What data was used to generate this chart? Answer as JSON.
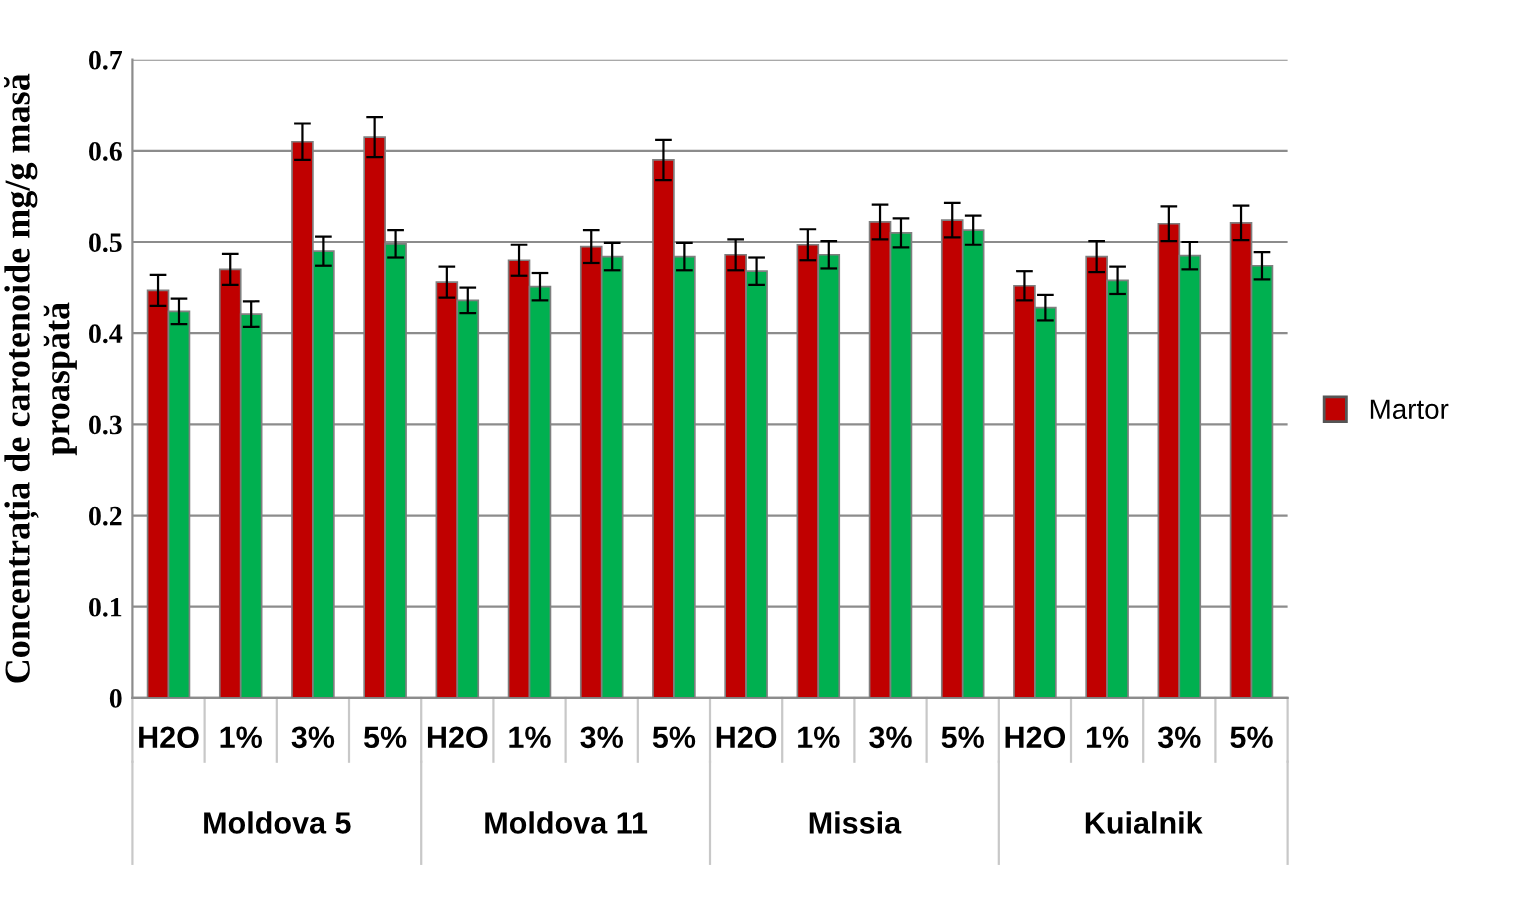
{
  "chart_data": {
    "type": "bar",
    "ylabel": "Concentrația de carotenoide mg/g masă proaspătă",
    "categories": [
      "H2O",
      "1%",
      "3%",
      "5%",
      "H2O",
      "1%",
      "3%",
      "5%",
      "H2O",
      "1%",
      "3%",
      "5%",
      "H2O",
      "1%",
      "3%",
      "5%"
    ],
    "annotations": [
      "Moldova 5",
      "Moldova 11",
      "Missia",
      "Kuialnik"
    ],
    "series": [
      {
        "name": "Martor",
        "color": "#c00000",
        "values": [
          0.447,
          0.47,
          0.61,
          0.615,
          0.456,
          0.48,
          0.495,
          0.59,
          0.486,
          0.497,
          0.522,
          0.524,
          0.452,
          0.484,
          0.52,
          0.521
        ],
        "errors": [
          0.017,
          0.017,
          0.02,
          0.022,
          0.017,
          0.017,
          0.018,
          0.022,
          0.017,
          0.017,
          0.019,
          0.019,
          0.016,
          0.017,
          0.019,
          0.019
        ]
      },
      {
        "color": "#00b050",
        "values": [
          0.424,
          0.421,
          0.49,
          0.498,
          0.436,
          0.451,
          0.484,
          0.484,
          0.468,
          0.486,
          0.51,
          0.513,
          0.428,
          0.458,
          0.485,
          0.474
        ],
        "errors": [
          0.014,
          0.014,
          0.016,
          0.015,
          0.014,
          0.015,
          0.015,
          0.015,
          0.015,
          0.015,
          0.016,
          0.016,
          0.014,
          0.015,
          0.015,
          0.015
        ]
      }
    ],
    "ylim": [
      0,
      0.7
    ],
    "yticks": [
      0,
      0.1,
      0.2,
      0.3,
      0.4,
      0.5,
      0.6,
      0.7
    ],
    "grid": "y",
    "legend": "right"
  }
}
